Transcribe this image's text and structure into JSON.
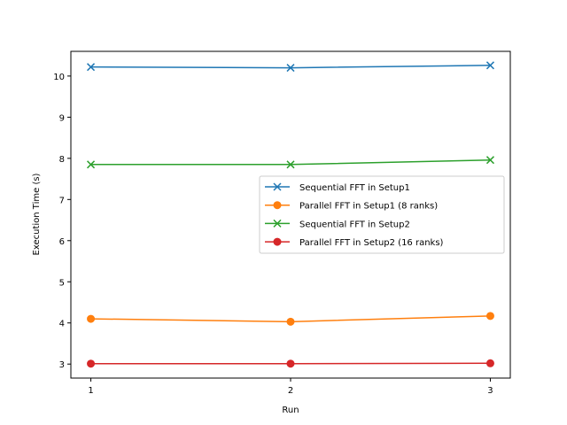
{
  "chart_data": {
    "type": "line",
    "title": "",
    "xlabel": "Run",
    "ylabel": "Execution Time (s)",
    "x": [
      1,
      2,
      3
    ],
    "x_ticks": [
      "1",
      "2",
      "3"
    ],
    "y_ticks": [
      "3",
      "4",
      "5",
      "6",
      "7",
      "8",
      "9",
      "10"
    ],
    "xlim": [
      0.9,
      3.1
    ],
    "ylim": [
      2.66,
      10.6
    ],
    "grid": false,
    "legend_position": "center-right",
    "series": [
      {
        "name": "Sequential FFT in Setup1",
        "values": [
          10.22,
          10.2,
          10.26
        ],
        "color": "#1f77b4",
        "marker": "x"
      },
      {
        "name": "Parallel FFT in Setup1 (8 ranks)",
        "values": [
          4.1,
          4.03,
          4.17
        ],
        "color": "#ff7f0e",
        "marker": "o"
      },
      {
        "name": "Sequential FFT in Setup2",
        "values": [
          7.85,
          7.85,
          7.96
        ],
        "color": "#2ca02c",
        "marker": "x"
      },
      {
        "name": "Parallel FFT in Setup2 (16 ranks)",
        "values": [
          3.01,
          3.01,
          3.02
        ],
        "color": "#d62728",
        "marker": "o"
      }
    ]
  }
}
